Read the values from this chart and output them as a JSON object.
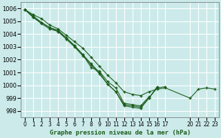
{
  "background_color": "#cceaea",
  "plot_bg_color": "#cceaea",
  "grid_color": "#ffffff",
  "line_color": "#1a5c1a",
  "title": "Graphe pression niveau de la mer (hPa)",
  "xlim": [
    -0.5,
    23.5
  ],
  "ylim": [
    997.5,
    1006.5
  ],
  "yticks": [
    998,
    999,
    1000,
    1001,
    1002,
    1003,
    1004,
    1005,
    1006
  ],
  "xtick_positions": [
    0,
    1,
    2,
    3,
    4,
    5,
    6,
    7,
    8,
    9,
    10,
    11,
    12,
    13,
    14,
    15,
    16,
    17,
    20,
    21,
    22,
    23
  ],
  "xtick_labels": [
    "0",
    "1",
    "2",
    "3",
    "4",
    "5",
    "6",
    "7",
    "8",
    "9",
    "10",
    "11",
    "12",
    "13",
    "14",
    "15",
    "16",
    "17",
    "20",
    "21",
    "22",
    "23"
  ],
  "series": [
    {
      "x": [
        0,
        1,
        2,
        3,
        4,
        5,
        6,
        7,
        8,
        9,
        10,
        11,
        12,
        13,
        14,
        15,
        16,
        17,
        20,
        21,
        22,
        23
      ],
      "y": [
        1005.9,
        1005.5,
        1005.2,
        1004.7,
        1004.4,
        1003.9,
        1003.4,
        1002.9,
        1002.2,
        1001.5,
        1000.8,
        1000.2,
        999.5,
        999.3,
        999.2,
        999.5,
        999.7,
        999.8,
        999.0,
        999.7,
        999.8,
        999.7
      ]
    },
    {
      "x": [
        0,
        1,
        2,
        3,
        4,
        5,
        6,
        7,
        8,
        9,
        10,
        11,
        12,
        13,
        14,
        15
      ],
      "y": [
        1005.9,
        1005.4,
        1004.9,
        1004.5,
        1004.2,
        1003.7,
        1003.1,
        1002.4,
        1001.4,
        1001.1,
        1000.3,
        999.8,
        998.6,
        998.5,
        998.4,
        999.1
      ]
    },
    {
      "x": [
        0,
        1,
        2,
        3,
        4,
        5,
        6,
        7,
        8,
        9,
        10,
        11,
        12,
        13,
        14,
        15,
        16
      ],
      "y": [
        1005.9,
        1005.3,
        1004.9,
        1004.5,
        1004.3,
        1003.7,
        1003.1,
        1002.4,
        1001.7,
        1001.0,
        1000.1,
        999.5,
        998.5,
        998.4,
        998.3,
        999.0,
        999.9
      ]
    },
    {
      "x": [
        0,
        1,
        2,
        3,
        4,
        5,
        6,
        7,
        8,
        9,
        10,
        11,
        12,
        13,
        14,
        15,
        16,
        17
      ],
      "y": [
        1005.9,
        1005.3,
        1004.8,
        1004.4,
        1004.2,
        1003.6,
        1003.0,
        1002.3,
        1001.6,
        1000.9,
        1000.1,
        999.5,
        998.4,
        998.3,
        998.2,
        999.0,
        999.8,
        999.9
      ]
    }
  ]
}
